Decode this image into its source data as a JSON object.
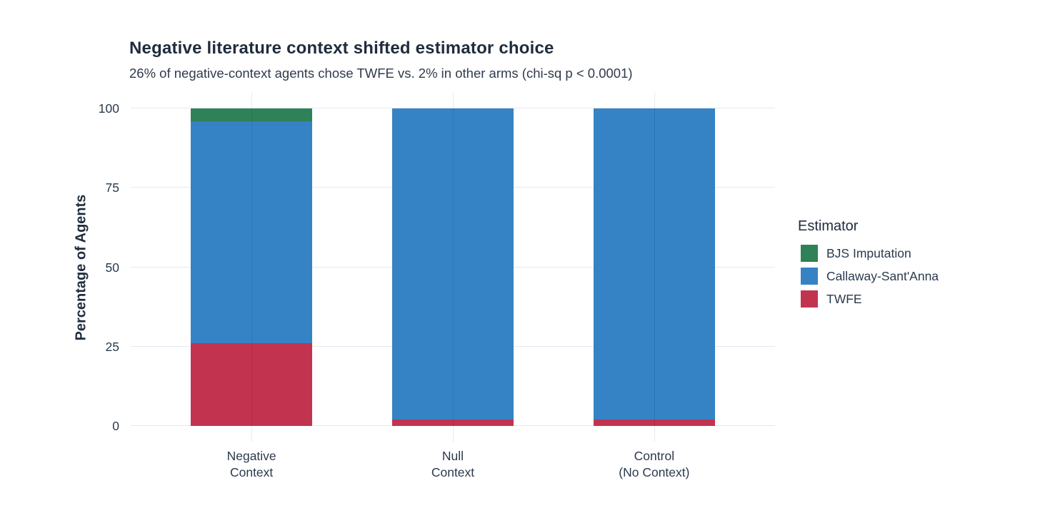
{
  "chart_data": {
    "type": "bar",
    "stacked": true,
    "title": "Negative literature context shifted estimator choice",
    "subtitle": "26% of negative-context agents chose TWFE vs. 2% in other arms (chi-sq p < 0.0001)",
    "ylabel": "Percentage of Agents",
    "xlabel": "",
    "categories": [
      "Negative\nContext",
      "Null\nContext",
      "Control\n(No Context)"
    ],
    "series": [
      {
        "name": "BJS Imputation",
        "color": "#2F8158",
        "values": [
          4,
          0,
          0
        ]
      },
      {
        "name": "Callaway-Sant'Anna",
        "color": "#3583C4",
        "values": [
          70,
          98,
          98
        ]
      },
      {
        "name": "TWFE",
        "color": "#C23350",
        "values": [
          26,
          2,
          2
        ]
      }
    ],
    "yticks": [
      0,
      25,
      50,
      75,
      100
    ],
    "ylim": [
      0,
      100
    ],
    "legend": {
      "title": "Estimator",
      "position": "right"
    },
    "grid": {
      "horizontal": "major",
      "vertical": "category-centers"
    }
  },
  "colors": {
    "title_text": "#1F2C3D",
    "subtitle_text": "#2F3B4C",
    "axis_text": "#2B3A4D",
    "gridline": "#E4E9F2",
    "background": "#FFFFFF"
  }
}
